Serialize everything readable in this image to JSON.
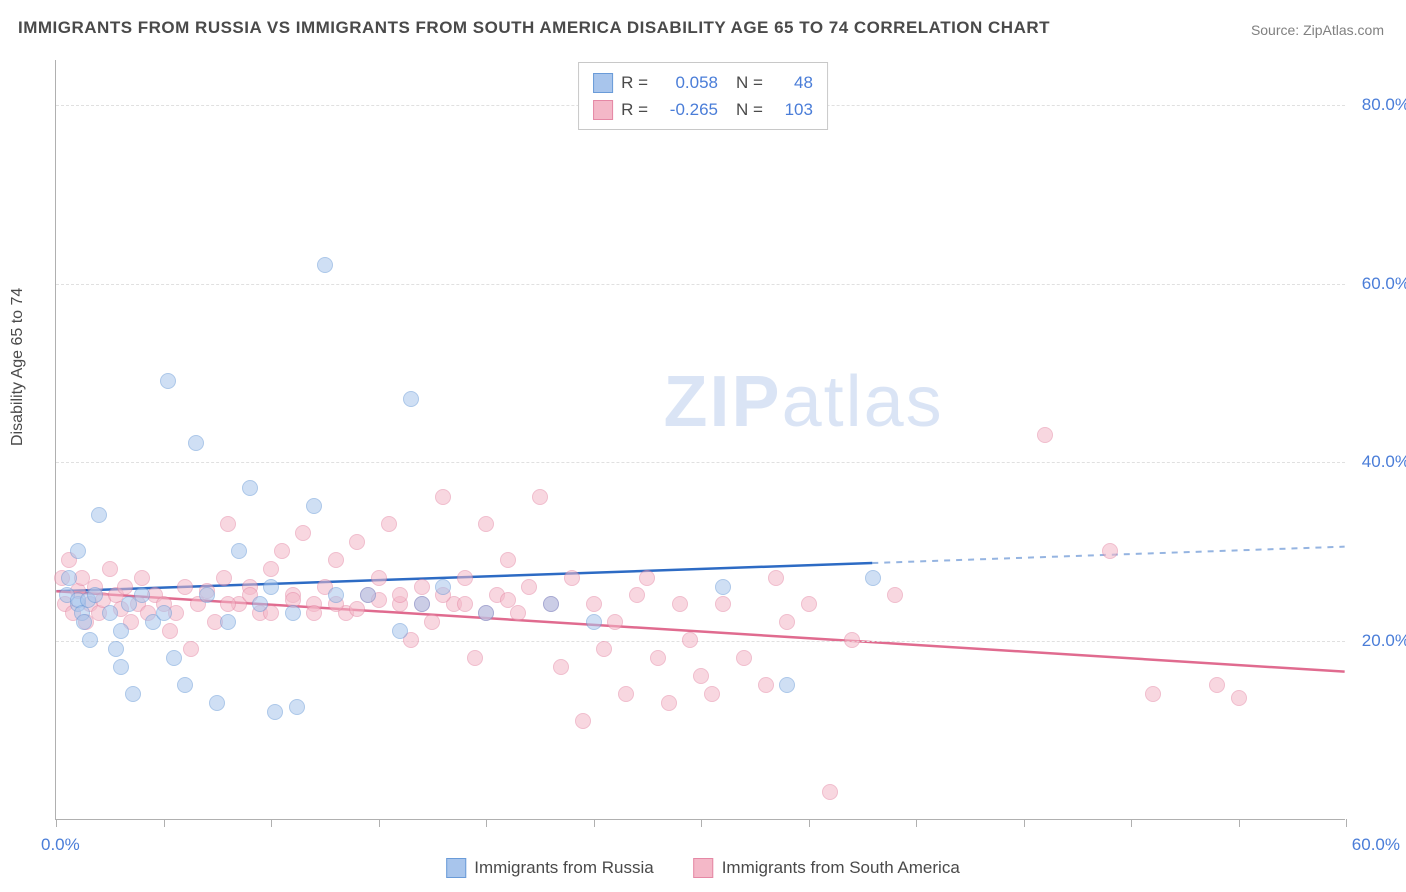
{
  "title": "IMMIGRANTS FROM RUSSIA VS IMMIGRANTS FROM SOUTH AMERICA DISABILITY AGE 65 TO 74 CORRELATION CHART",
  "source": "Source: ZipAtlas.com",
  "y_axis_label": "Disability Age 65 to 74",
  "watermark_bold": "ZIP",
  "watermark_rest": "atlas",
  "chart": {
    "type": "scatter",
    "xlim": [
      0,
      60
    ],
    "ylim": [
      0,
      85
    ],
    "y_ticks": [
      20,
      40,
      60,
      80
    ],
    "y_tick_labels": [
      "20.0%",
      "40.0%",
      "60.0%",
      "80.0%"
    ],
    "x_tick_positions": [
      0,
      5,
      10,
      15,
      20,
      25,
      30,
      35,
      40,
      45,
      50,
      55,
      60
    ],
    "x_label_min": "0.0%",
    "x_label_max": "60.0%",
    "grid_color": "#e0e0e0",
    "axis_color": "#b0b0b0",
    "tick_label_color": "#4a7dd8",
    "background_color": "#ffffff",
    "point_radius": 8,
    "point_opacity": 0.55,
    "series": {
      "russia": {
        "label": "Immigrants from Russia",
        "fill": "#a8c5ec",
        "stroke": "#6a9bd8",
        "line_color": "#2d6bc4",
        "R": "0.058",
        "N": "48",
        "trend": {
          "x1": 0,
          "y1": 25.5,
          "x2": 60,
          "y2": 30.5,
          "solid_until_x": 38
        },
        "points": [
          [
            0.5,
            25
          ],
          [
            0.6,
            27
          ],
          [
            1,
            24
          ],
          [
            1,
            30
          ],
          [
            1,
            24.5
          ],
          [
            1.2,
            23
          ],
          [
            1.3,
            22
          ],
          [
            1.5,
            24.5
          ],
          [
            1.6,
            20
          ],
          [
            1.8,
            25
          ],
          [
            2,
            34
          ],
          [
            2.5,
            23
          ],
          [
            2.8,
            19
          ],
          [
            3,
            21
          ],
          [
            3,
            17
          ],
          [
            3.4,
            24
          ],
          [
            3.6,
            14
          ],
          [
            4,
            25
          ],
          [
            4.5,
            22
          ],
          [
            5,
            23
          ],
          [
            5.2,
            49
          ],
          [
            5.5,
            18
          ],
          [
            6,
            15
          ],
          [
            6.5,
            42
          ],
          [
            7,
            25
          ],
          [
            7.5,
            13
          ],
          [
            8,
            22
          ],
          [
            8.5,
            30
          ],
          [
            9,
            37
          ],
          [
            9.5,
            24
          ],
          [
            10,
            26
          ],
          [
            10.2,
            12
          ],
          [
            11,
            23
          ],
          [
            11.2,
            12.5
          ],
          [
            12,
            35
          ],
          [
            12.5,
            62
          ],
          [
            13,
            25
          ],
          [
            14.5,
            25
          ],
          [
            16,
            21
          ],
          [
            16.5,
            47
          ],
          [
            17,
            24
          ],
          [
            18,
            26
          ],
          [
            20,
            23
          ],
          [
            23,
            24
          ],
          [
            25,
            22
          ],
          [
            31,
            26
          ],
          [
            34,
            15
          ],
          [
            38,
            27
          ]
        ]
      },
      "south_america": {
        "label": "Immigrants from South America",
        "fill": "#f4b8c8",
        "stroke": "#e588a5",
        "line_color": "#e06b8f",
        "R": "-0.265",
        "N": "103",
        "trend": {
          "x1": 0,
          "y1": 25.5,
          "x2": 60,
          "y2": 16.5,
          "solid_until_x": 60
        },
        "points": [
          [
            0.3,
            27
          ],
          [
            0.4,
            24
          ],
          [
            0.6,
            29
          ],
          [
            0.8,
            23
          ],
          [
            1,
            25.5
          ],
          [
            1.2,
            27
          ],
          [
            1.4,
            22
          ],
          [
            1.6,
            24
          ],
          [
            1.8,
            26
          ],
          [
            2,
            23
          ],
          [
            2.2,
            24.5
          ],
          [
            2.5,
            28
          ],
          [
            2.8,
            25
          ],
          [
            3,
            23.5
          ],
          [
            3.2,
            26
          ],
          [
            3.5,
            22
          ],
          [
            3.8,
            24
          ],
          [
            4,
            27
          ],
          [
            4.3,
            23
          ],
          [
            4.6,
            25
          ],
          [
            5,
            24
          ],
          [
            5.3,
            21
          ],
          [
            5.6,
            23
          ],
          [
            6,
            26
          ],
          [
            6.3,
            19
          ],
          [
            6.6,
            24
          ],
          [
            7,
            25.5
          ],
          [
            7.4,
            22
          ],
          [
            7.8,
            27
          ],
          [
            8,
            33
          ],
          [
            8.5,
            24
          ],
          [
            9,
            26
          ],
          [
            9.5,
            23
          ],
          [
            10,
            28
          ],
          [
            10.5,
            30
          ],
          [
            11,
            25
          ],
          [
            11.5,
            32
          ],
          [
            12,
            24
          ],
          [
            12.5,
            26
          ],
          [
            13,
            29
          ],
          [
            13.5,
            23
          ],
          [
            14,
            31
          ],
          [
            14.5,
            25
          ],
          [
            15,
            27
          ],
          [
            15.5,
            33
          ],
          [
            16,
            24
          ],
          [
            16.5,
            20
          ],
          [
            17,
            26
          ],
          [
            17.5,
            22
          ],
          [
            18,
            36
          ],
          [
            18.5,
            24
          ],
          [
            19,
            27
          ],
          [
            19.5,
            18
          ],
          [
            20,
            33
          ],
          [
            20.5,
            25
          ],
          [
            21,
            29
          ],
          [
            21.5,
            23
          ],
          [
            22,
            26
          ],
          [
            22.5,
            36
          ],
          [
            23,
            24
          ],
          [
            23.5,
            17
          ],
          [
            24,
            27
          ],
          [
            24.5,
            11
          ],
          [
            25,
            24
          ],
          [
            25.5,
            19
          ],
          [
            26,
            22
          ],
          [
            26.5,
            14
          ],
          [
            27,
            25
          ],
          [
            27.5,
            27
          ],
          [
            28,
            18
          ],
          [
            28.5,
            13
          ],
          [
            29,
            24
          ],
          [
            29.5,
            20
          ],
          [
            30,
            16
          ],
          [
            30.5,
            14
          ],
          [
            31,
            24
          ],
          [
            32,
            18
          ],
          [
            33,
            15
          ],
          [
            33.5,
            27
          ],
          [
            34,
            22
          ],
          [
            35,
            24
          ],
          [
            36,
            3
          ],
          [
            37,
            20
          ],
          [
            39,
            25
          ],
          [
            46,
            43
          ],
          [
            49,
            30
          ],
          [
            51,
            14
          ],
          [
            54,
            15
          ],
          [
            55,
            13.5
          ],
          [
            8,
            24
          ],
          [
            9,
            25
          ],
          [
            10,
            23
          ],
          [
            11,
            24.5
          ],
          [
            12,
            23
          ],
          [
            13,
            24
          ],
          [
            14,
            23.5
          ],
          [
            15,
            24.5
          ],
          [
            16,
            25
          ],
          [
            17,
            24
          ],
          [
            18,
            25
          ],
          [
            19,
            24
          ],
          [
            20,
            23
          ],
          [
            21,
            24.5
          ]
        ]
      }
    }
  },
  "legend_box": {
    "rows": [
      {
        "series": "russia",
        "R_label": "R =",
        "N_label": "N ="
      },
      {
        "series": "south_america",
        "R_label": "R =",
        "N_label": "N ="
      }
    ]
  }
}
